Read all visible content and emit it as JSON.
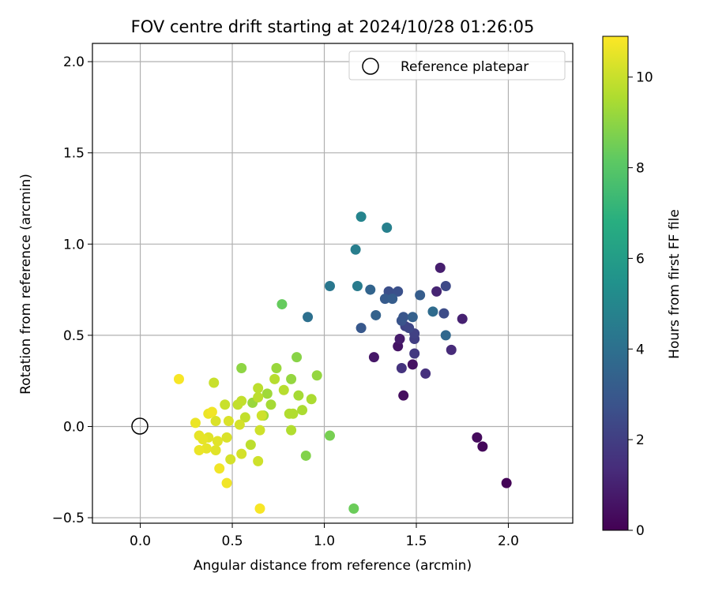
{
  "chart_data": {
    "type": "scatter",
    "title": "FOV centre drift starting at 2024/10/28 01:26:05",
    "xlabel": "Angular distance from reference (arcmin)",
    "ylabel": "Rotation from reference (arcmin)",
    "xlim": [
      -0.26,
      2.35
    ],
    "ylim": [
      -0.53,
      2.1
    ],
    "xticks": [
      "0.0",
      "0.5",
      "1.0",
      "1.5",
      "2.0"
    ],
    "yticks": [
      "−0.5",
      "0.0",
      "0.5",
      "1.0",
      "1.5",
      "2.0"
    ],
    "grid": true,
    "legend": {
      "placement": "top-right",
      "entries": [
        "Reference platepar"
      ]
    },
    "reference_point": {
      "x": 0.0,
      "y": 0.0
    },
    "colorbar": {
      "label": "Hours from first FF file",
      "colormap": "viridis",
      "range": [
        0,
        10.9
      ],
      "ticks": [
        "0",
        "2",
        "4",
        "6",
        "8",
        "10"
      ]
    },
    "points": [
      {
        "x": 1.99,
        "y": -0.31,
        "hours": 0.1
      },
      {
        "x": 1.86,
        "y": -0.11,
        "hours": 0.2
      },
      {
        "x": 1.83,
        "y": -0.06,
        "hours": 0.3
      },
      {
        "x": 1.43,
        "y": 0.17,
        "hours": 0.4
      },
      {
        "x": 1.48,
        "y": 0.34,
        "hours": 0.5
      },
      {
        "x": 1.4,
        "y": 0.44,
        "hours": 0.6
      },
      {
        "x": 1.27,
        "y": 0.38,
        "hours": 0.7
      },
      {
        "x": 1.41,
        "y": 0.48,
        "hours": 0.8
      },
      {
        "x": 1.63,
        "y": 0.87,
        "hours": 0.9
      },
      {
        "x": 1.75,
        "y": 0.59,
        "hours": 1.0
      },
      {
        "x": 1.61,
        "y": 0.74,
        "hours": 1.1
      },
      {
        "x": 1.69,
        "y": 0.42,
        "hours": 1.3
      },
      {
        "x": 1.55,
        "y": 0.29,
        "hours": 1.5
      },
      {
        "x": 1.42,
        "y": 0.32,
        "hours": 1.6
      },
      {
        "x": 1.49,
        "y": 0.4,
        "hours": 1.8
      },
      {
        "x": 1.49,
        "y": 0.48,
        "hours": 2.0
      },
      {
        "x": 1.49,
        "y": 0.51,
        "hours": 2.1
      },
      {
        "x": 1.44,
        "y": 0.55,
        "hours": 2.2
      },
      {
        "x": 1.46,
        "y": 0.54,
        "hours": 2.3
      },
      {
        "x": 1.66,
        "y": 0.77,
        "hours": 2.4
      },
      {
        "x": 1.65,
        "y": 0.62,
        "hours": 2.5
      },
      {
        "x": 1.35,
        "y": 0.74,
        "hours": 2.6
      },
      {
        "x": 1.4,
        "y": 0.74,
        "hours": 2.7
      },
      {
        "x": 1.42,
        "y": 0.58,
        "hours": 2.8
      },
      {
        "x": 1.43,
        "y": 0.6,
        "hours": 2.9
      },
      {
        "x": 1.2,
        "y": 0.54,
        "hours": 3.0
      },
      {
        "x": 1.33,
        "y": 0.7,
        "hours": 3.1
      },
      {
        "x": 1.37,
        "y": 0.7,
        "hours": 3.2
      },
      {
        "x": 1.52,
        "y": 0.72,
        "hours": 3.2
      },
      {
        "x": 1.48,
        "y": 0.6,
        "hours": 3.3
      },
      {
        "x": 1.28,
        "y": 0.61,
        "hours": 3.4
      },
      {
        "x": 1.25,
        "y": 0.75,
        "hours": 3.5
      },
      {
        "x": 1.66,
        "y": 0.5,
        "hours": 3.6
      },
      {
        "x": 1.59,
        "y": 0.63,
        "hours": 3.8
      },
      {
        "x": 0.91,
        "y": 0.6,
        "hours": 4.0
      },
      {
        "x": 1.03,
        "y": 0.77,
        "hours": 4.3
      },
      {
        "x": 1.18,
        "y": 0.77,
        "hours": 4.5
      },
      {
        "x": 1.17,
        "y": 0.97,
        "hours": 4.6
      },
      {
        "x": 1.34,
        "y": 1.09,
        "hours": 4.7
      },
      {
        "x": 1.2,
        "y": 1.15,
        "hours": 4.9
      },
      {
        "x": 0.77,
        "y": 0.67,
        "hours": 8.3
      },
      {
        "x": 1.16,
        "y": -0.45,
        "hours": 8.4
      },
      {
        "x": 1.03,
        "y": -0.05,
        "hours": 8.6
      },
      {
        "x": 0.9,
        "y": -0.16,
        "hours": 8.8
      },
      {
        "x": 0.85,
        "y": 0.38,
        "hours": 8.9
      },
      {
        "x": 0.55,
        "y": 0.32,
        "hours": 9.0
      },
      {
        "x": 0.96,
        "y": 0.28,
        "hours": 9.1
      },
      {
        "x": 0.82,
        "y": 0.26,
        "hours": 9.1
      },
      {
        "x": 0.74,
        "y": 0.32,
        "hours": 9.2
      },
      {
        "x": 0.61,
        "y": 0.13,
        "hours": 9.2
      },
      {
        "x": 0.67,
        "y": 0.06,
        "hours": 9.3
      },
      {
        "x": 0.69,
        "y": 0.18,
        "hours": 9.3
      },
      {
        "x": 0.71,
        "y": 0.12,
        "hours": 9.4
      },
      {
        "x": 0.86,
        "y": 0.17,
        "hours": 9.4
      },
      {
        "x": 0.93,
        "y": 0.15,
        "hours": 9.5
      },
      {
        "x": 0.88,
        "y": 0.09,
        "hours": 9.5
      },
      {
        "x": 0.83,
        "y": 0.07,
        "hours": 9.6
      },
      {
        "x": 0.81,
        "y": 0.07,
        "hours": 9.6
      },
      {
        "x": 0.82,
        "y": -0.02,
        "hours": 9.6
      },
      {
        "x": 0.78,
        "y": 0.2,
        "hours": 9.7
      },
      {
        "x": 0.73,
        "y": 0.26,
        "hours": 9.7
      },
      {
        "x": 0.64,
        "y": 0.21,
        "hours": 9.8
      },
      {
        "x": 0.64,
        "y": 0.16,
        "hours": 9.8
      },
      {
        "x": 0.6,
        "y": -0.1,
        "hours": 9.8
      },
      {
        "x": 0.57,
        "y": 0.05,
        "hours": 9.9
      },
      {
        "x": 0.55,
        "y": 0.14,
        "hours": 9.9
      },
      {
        "x": 0.53,
        "y": 0.12,
        "hours": 9.9
      },
      {
        "x": 0.4,
        "y": 0.24,
        "hours": 10.0
      },
      {
        "x": 0.46,
        "y": 0.12,
        "hours": 10.0
      },
      {
        "x": 0.66,
        "y": 0.06,
        "hours": 10.1
      },
      {
        "x": 0.65,
        "y": -0.02,
        "hours": 10.1
      },
      {
        "x": 0.64,
        "y": -0.19,
        "hours": 10.1
      },
      {
        "x": 0.55,
        "y": -0.15,
        "hours": 10.2
      },
      {
        "x": 0.54,
        "y": 0.01,
        "hours": 10.2
      },
      {
        "x": 0.49,
        "y": -0.18,
        "hours": 10.2
      },
      {
        "x": 0.48,
        "y": 0.03,
        "hours": 10.3
      },
      {
        "x": 0.47,
        "y": -0.06,
        "hours": 10.3
      },
      {
        "x": 0.41,
        "y": 0.03,
        "hours": 10.3
      },
      {
        "x": 0.42,
        "y": -0.08,
        "hours": 10.4
      },
      {
        "x": 0.41,
        "y": -0.13,
        "hours": 10.4
      },
      {
        "x": 0.37,
        "y": -0.06,
        "hours": 10.4
      },
      {
        "x": 0.36,
        "y": -0.12,
        "hours": 10.5
      },
      {
        "x": 0.34,
        "y": -0.07,
        "hours": 10.5
      },
      {
        "x": 0.32,
        "y": -0.05,
        "hours": 10.5
      },
      {
        "x": 0.32,
        "y": -0.13,
        "hours": 10.6
      },
      {
        "x": 0.3,
        "y": 0.02,
        "hours": 10.6
      },
      {
        "x": 0.37,
        "y": 0.07,
        "hours": 10.6
      },
      {
        "x": 0.39,
        "y": 0.08,
        "hours": 10.7
      },
      {
        "x": 0.43,
        "y": -0.23,
        "hours": 10.7
      },
      {
        "x": 0.47,
        "y": -0.31,
        "hours": 10.7
      },
      {
        "x": 0.65,
        "y": -0.45,
        "hours": 10.8
      },
      {
        "x": 0.21,
        "y": 0.26,
        "hours": 10.8
      }
    ]
  }
}
